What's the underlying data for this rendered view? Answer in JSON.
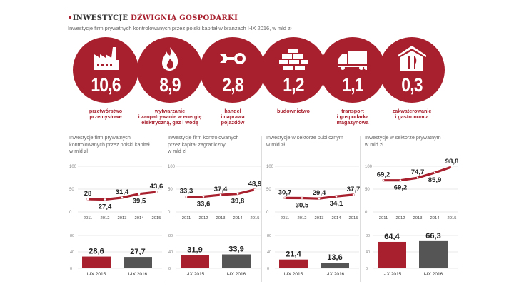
{
  "header": {
    "bullet": "•",
    "title_dark": "INWESTYCJE",
    "title_red": "DŹWIGNIĄ GOSPODARKI",
    "subtitle": "Inwestycje firm prywatnych kontrolowanych przez polski kapitał w branżach I-IX 2016, w mld zł"
  },
  "colors": {
    "accent": "#a8202e",
    "gray_bar": "#555555"
  },
  "sectors": [
    {
      "icon": "factory-icon",
      "value": "10,6",
      "label": [
        "przetwórstwo",
        "przemysłowe"
      ]
    },
    {
      "icon": "flame-icon",
      "value": "8,9",
      "label": [
        "wytwarzanie",
        "i zaopatrywanie w energię",
        "elektryczną, gaz i wodę"
      ]
    },
    {
      "icon": "wrench-icon",
      "value": "2,8",
      "label": [
        "handel",
        "i naprawa",
        "pojazdów"
      ]
    },
    {
      "icon": "bricks-icon",
      "value": "1,2",
      "label": [
        "budownictwo"
      ]
    },
    {
      "icon": "truck-icon",
      "value": "1,1",
      "label": [
        "transport",
        "i gospodarka",
        "magazynowa"
      ]
    },
    {
      "icon": "house-cutlery-icon",
      "value": "0,3",
      "label": [
        "zakwaterowanie",
        "i gastronomia"
      ]
    }
  ],
  "chart_data": [
    {
      "type": "line",
      "title": [
        "Inwestycje firm prywatnych",
        "kontrolowanych przez polski kapitał",
        "w mld zł"
      ],
      "categories": [
        "2011",
        "2012",
        "2013",
        "2014",
        "2015"
      ],
      "values": [
        28,
        27.4,
        31.4,
        39.5,
        43.6
      ],
      "labels": [
        "28",
        "27,4",
        "31,4",
        "39,5",
        "43,6"
      ],
      "ylim": [
        0,
        100
      ],
      "yticks": [
        "0",
        "50",
        "100"
      ]
    },
    {
      "type": "line",
      "title": [
        "Inwestycje firm kontrolowanych",
        "przez kapitał zagraniczny",
        "w mld zł"
      ],
      "categories": [
        "2011",
        "2012",
        "2013",
        "2014",
        "2015"
      ],
      "values": [
        33.3,
        33.6,
        37.4,
        39.8,
        48.9
      ],
      "labels": [
        "33,3",
        "33,6",
        "37,4",
        "39,8",
        "48,9"
      ],
      "ylim": [
        0,
        100
      ],
      "yticks": [
        "0",
        "50",
        "100"
      ]
    },
    {
      "type": "line",
      "title": [
        "Inwestycje w sektorze publicznym",
        "w mld zł"
      ],
      "categories": [
        "2011",
        "2012",
        "2013",
        "2014",
        "2015"
      ],
      "values": [
        30.7,
        30.5,
        29.4,
        34.1,
        37.7
      ],
      "labels": [
        "30,7",
        "30,5",
        "29,4",
        "34,1",
        "37,7"
      ],
      "ylim": [
        0,
        100
      ],
      "yticks": [
        "0",
        "50",
        "100"
      ]
    },
    {
      "type": "line",
      "title": [
        "Inwestycje w sektorze prywatnym",
        "w mld zł"
      ],
      "categories": [
        "2011",
        "2012",
        "2013",
        "2014",
        "2015"
      ],
      "values": [
        69.2,
        69.2,
        74.7,
        85.9,
        98.8
      ],
      "labels": [
        "69,2",
        "69,2",
        "74,7",
        "85,9",
        "98,8"
      ],
      "ylim": [
        0,
        100
      ],
      "yticks": [
        "0",
        "50",
        "100"
      ]
    },
    {
      "type": "bar",
      "categories": [
        "I-IX 2015",
        "I-IX 2016"
      ],
      "values": [
        28.6,
        27.7
      ],
      "labels": [
        "28,6",
        "27,7"
      ],
      "ylim": [
        0,
        80
      ],
      "yticks": [
        "0",
        "40",
        "80"
      ]
    },
    {
      "type": "bar",
      "categories": [
        "I-IX 2015",
        "I-IX 2016"
      ],
      "values": [
        31.9,
        33.9
      ],
      "labels": [
        "31,9",
        "33,9"
      ],
      "ylim": [
        0,
        80
      ],
      "yticks": [
        "0",
        "40",
        "80"
      ]
    },
    {
      "type": "bar",
      "categories": [
        "I-IX 2015",
        "I-IX 2016"
      ],
      "values": [
        21.4,
        13.6
      ],
      "labels": [
        "21,4",
        "13,6"
      ],
      "ylim": [
        0,
        80
      ],
      "yticks": [
        "0",
        "40",
        "80"
      ]
    },
    {
      "type": "bar",
      "categories": [
        "I-IX 2015",
        "I-IX 2016"
      ],
      "values": [
        64.4,
        66.3
      ],
      "labels": [
        "64,4",
        "66,3"
      ],
      "ylim": [
        0,
        80
      ],
      "yticks": [
        "0",
        "40",
        "80"
      ]
    }
  ]
}
